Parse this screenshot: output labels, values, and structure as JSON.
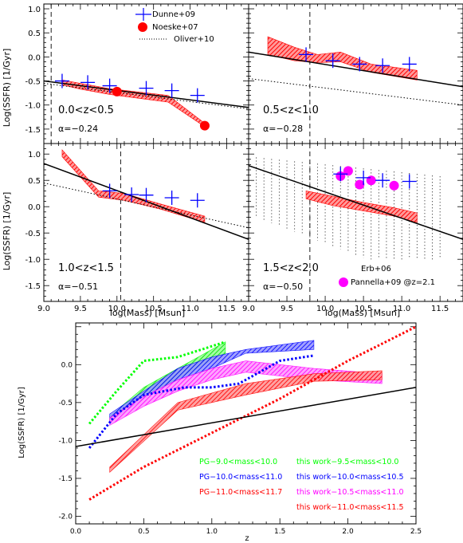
{
  "chart_data": [
    {
      "type": "line",
      "panel": "top-left",
      "label": "0.0<z<0.5",
      "alpha_label": "α=−0.24",
      "xlim": [
        9.0,
        11.8
      ],
      "ylim": [
        -1.8,
        1.1
      ],
      "xticks": [
        "9.0",
        "9.5",
        "10.0",
        "10.5",
        "11.0",
        "11.5"
      ],
      "yticks": [
        "-1.5",
        "-1.0",
        "-0.5",
        "0.0",
        "0.5",
        "1.0"
      ],
      "ylabel": "Log(SSFR) [1/Gyr]",
      "series": [
        {
          "name": "Dunne+09",
          "style": "cross",
          "color": "#0000ff",
          "x": [
            9.25,
            9.6,
            9.9,
            10.4,
            10.75,
            11.1
          ],
          "y": [
            -0.5,
            -0.53,
            -0.6,
            -0.65,
            -0.7,
            -0.8
          ]
        },
        {
          "name": "Noeske+07",
          "style": "dot",
          "color": "#ff0000",
          "x": [
            10.0,
            11.2
          ],
          "y": [
            -0.72,
            -1.43
          ]
        },
        {
          "name": "Oliver+10",
          "style": "dotted",
          "color": "#000000",
          "x": [
            9.0,
            11.8
          ],
          "y": [
            -0.55,
            -1.08
          ]
        },
        {
          "style": "solid",
          "color": "#000000",
          "x": [
            9.0,
            11.8
          ],
          "y": [
            -0.5,
            -1.05
          ]
        },
        {
          "style": "band",
          "color": "#ff0000",
          "x": [
            9.25,
            9.5,
            9.9,
            10.3,
            10.7,
            11.2
          ],
          "ylow": [
            -0.58,
            -0.67,
            -0.78,
            -0.86,
            -0.94,
            -1.45
          ],
          "yhigh": [
            -0.48,
            -0.55,
            -0.66,
            -0.73,
            -0.8,
            -1.38
          ]
        }
      ],
      "vline": 9.1
    },
    {
      "type": "line",
      "panel": "top-right",
      "label": "0.5<z<1.0",
      "alpha_label": "α=−0.28",
      "xlim": [
        9.0,
        11.8
      ],
      "ylim": [
        -1.8,
        1.1
      ],
      "series": [
        {
          "name": "Dunne+09",
          "style": "cross",
          "color": "#0000ff",
          "x": [
            9.75,
            10.1,
            10.45,
            10.75,
            11.1
          ],
          "y": [
            0.05,
            -0.08,
            -0.15,
            -0.18,
            -0.15
          ]
        },
        {
          "style": "dotted",
          "color": "#000000",
          "x": [
            9.0,
            11.8
          ],
          "y": [
            -0.45,
            -1.0
          ]
        },
        {
          "style": "solid",
          "color": "#000000",
          "x": [
            9.0,
            11.8
          ],
          "y": [
            0.1,
            -0.62
          ]
        },
        {
          "style": "band",
          "color": "#ff0000",
          "x": [
            9.25,
            9.6,
            9.9,
            10.2,
            10.6,
            11.2
          ],
          "ylow": [
            0.05,
            -0.08,
            -0.12,
            -0.1,
            -0.32,
            -0.48
          ],
          "yhigh": [
            0.42,
            0.2,
            0.05,
            0.1,
            -0.15,
            -0.28
          ]
        }
      ],
      "vline": 9.8
    },
    {
      "type": "line",
      "panel": "bottom-left",
      "label": "1.0<z<1.5",
      "alpha_label": "α=−0.51",
      "xlim": [
        9.0,
        11.8
      ],
      "ylim": [
        -1.8,
        1.2
      ],
      "xlabel": "log(Mass) [Msun]",
      "ylabel": "Log(SSFR) [1/Gyr]",
      "series": [
        {
          "name": "Dunne+09",
          "style": "cross",
          "color": "#0000ff",
          "x": [
            9.9,
            10.2,
            10.4,
            10.75,
            11.1
          ],
          "y": [
            0.3,
            0.23,
            0.22,
            0.17,
            0.12
          ]
        },
        {
          "style": "dotted",
          "color": "#000000",
          "x": [
            9.0,
            11.8
          ],
          "y": [
            0.45,
            -0.4
          ]
        },
        {
          "style": "solid",
          "color": "#000000",
          "x": [
            9.0,
            11.8
          ],
          "y": [
            0.82,
            -0.62
          ]
        },
        {
          "style": "band",
          "color": "#ff0000",
          "x": [
            9.25,
            9.75,
            10.1,
            10.6,
            11.2
          ],
          "ylow": [
            0.95,
            0.18,
            0.12,
            -0.05,
            -0.3
          ],
          "yhigh": [
            1.08,
            0.3,
            0.25,
            0.05,
            -0.18
          ]
        }
      ],
      "vline": 10.05
    },
    {
      "type": "line",
      "panel": "bottom-right",
      "label": "1.5<z<2.0",
      "alpha_label": "α=−0.50",
      "xlim": [
        9.0,
        11.8
      ],
      "ylim": [
        -1.8,
        1.2
      ],
      "xlabel": "log(Mass) [Msun]",
      "series": [
        {
          "name": "Erb+06",
          "style": "dotted-region",
          "color": "#000000",
          "x": [
            9.0,
            11.5
          ],
          "y": [
            -0.5,
            1.0
          ]
        },
        {
          "name": "Pannella+09 @z=2.1",
          "style": "dot",
          "color": "#ff00ff",
          "x": [
            10.2,
            10.3,
            10.45,
            10.6,
            10.9
          ],
          "y": [
            0.58,
            0.68,
            0.42,
            0.5,
            0.4
          ]
        },
        {
          "name": "Dunne+09",
          "style": "cross",
          "color": "#0000ff",
          "x": [
            10.2,
            10.5,
            10.75,
            11.1
          ],
          "y": [
            0.62,
            0.55,
            0.5,
            0.48
          ]
        },
        {
          "style": "solid",
          "color": "#000000",
          "x": [
            9.0,
            11.8
          ],
          "y": [
            0.78,
            -0.62
          ]
        },
        {
          "style": "band",
          "color": "#ff0000",
          "x": [
            9.75,
            10.1,
            10.5,
            10.9,
            11.2
          ],
          "ylow": [
            0.15,
            0.02,
            -0.08,
            -0.18,
            -0.3
          ],
          "yhigh": [
            0.3,
            0.2,
            0.08,
            -0.02,
            -0.12
          ]
        }
      ],
      "vline": 9.8
    },
    {
      "type": "line",
      "panel": "bottom",
      "xlim": [
        0.0,
        2.5
      ],
      "ylim": [
        -2.1,
        0.55
      ],
      "xticks": [
        "0.0",
        "0.5",
        "1.0",
        "1.5",
        "2.0",
        "2.5"
      ],
      "yticks": [
        "-2.0",
        "-1.5",
        "-1.0",
        "-0.5",
        "0.0"
      ],
      "xlabel": "z",
      "ylabel": "Log(SSFR) [1/Gyr]",
      "series": [
        {
          "name": "PG−9.0<mass<10.0",
          "style": "dotted",
          "color": "#00ff00",
          "x": [
            0.1,
            0.3,
            0.5,
            0.75,
            1.1
          ],
          "y": [
            -0.78,
            -0.35,
            0.05,
            0.1,
            0.3
          ]
        },
        {
          "name": "PG−10.0<mass<11.0",
          "style": "dotted",
          "color": "#0000ff",
          "x": [
            0.1,
            0.3,
            0.5,
            0.8,
            1.0,
            1.2,
            1.5,
            1.75
          ],
          "y": [
            -1.1,
            -0.65,
            -0.4,
            -0.3,
            -0.3,
            -0.25,
            0.05,
            0.12
          ]
        },
        {
          "name": "PG−11.0<mass<11.7",
          "style": "dotted",
          "color": "#ff0000",
          "x": [
            0.1,
            0.5,
            1.0,
            1.5,
            2.0,
            2.5
          ],
          "y": [
            -1.78,
            -1.35,
            -0.9,
            -0.45,
            0.05,
            0.5
          ]
        },
        {
          "style": "solid",
          "color": "#000000",
          "x": [
            0.0,
            2.5
          ],
          "y": [
            -1.08,
            -0.3
          ]
        },
        {
          "name": "this work−9.5<mass<10.0",
          "style": "band",
          "color": "#00ff00",
          "x": [
            0.25,
            0.5,
            0.75,
            1.1
          ],
          "ylow": [
            -0.75,
            -0.45,
            -0.18,
            0.15
          ],
          "yhigh": [
            -0.68,
            -0.3,
            -0.05,
            0.3
          ]
        },
        {
          "name": "this work−10.0<mass<10.5",
          "style": "band",
          "color": "#0000ff",
          "x": [
            0.25,
            0.5,
            0.75,
            1.0,
            1.25,
            1.75
          ],
          "ylow": [
            -0.75,
            -0.45,
            -0.2,
            -0.05,
            0.15,
            0.2
          ],
          "yhigh": [
            -0.65,
            -0.35,
            -0.05,
            0.1,
            0.2,
            0.32
          ]
        },
        {
          "name": "this work−10.5<mass<11.0",
          "style": "band",
          "color": "#ff00ff",
          "x": [
            0.25,
            0.5,
            0.75,
            1.0,
            1.25,
            1.75,
            2.25
          ],
          "ylow": [
            -0.8,
            -0.55,
            -0.35,
            -0.2,
            -0.1,
            -0.2,
            -0.25
          ],
          "yhigh": [
            -0.7,
            -0.42,
            -0.2,
            -0.05,
            0.05,
            -0.05,
            -0.12
          ]
        },
        {
          "name": "this work−11.0<mass<11.5",
          "style": "band",
          "color": "#ff0000",
          "x": [
            0.25,
            0.75,
            1.25,
            1.75,
            2.25
          ],
          "ylow": [
            -1.42,
            -0.6,
            -0.4,
            -0.22,
            -0.2
          ],
          "yhigh": [
            -1.35,
            -0.5,
            -0.25,
            -0.12,
            -0.08
          ]
        }
      ]
    }
  ],
  "legend_top": {
    "dunne": "Dunne+09",
    "noeske": "Noeske+07",
    "oliver": "Oliver+10"
  },
  "legend_br": {
    "erb": "Erb+06",
    "pannella": "Pannella+09 @z=2.1"
  },
  "legend_bottom": {
    "pg1": "PG−9.0<mass<10.0",
    "pg2": "PG−10.0<mass<11.0",
    "pg3": "PG−11.0<mass<11.7",
    "tw1": "this work−9.5<mass<10.0",
    "tw2": "this work−10.0<mass<10.5",
    "tw3": "this work−10.5<mass<11.0",
    "tw4": "this work−11.0<mass<11.5"
  },
  "colors": {
    "green": "#00ff00",
    "blue": "#0000ff",
    "red": "#ff0000",
    "magenta": "#ff00ff",
    "black": "#000000"
  }
}
